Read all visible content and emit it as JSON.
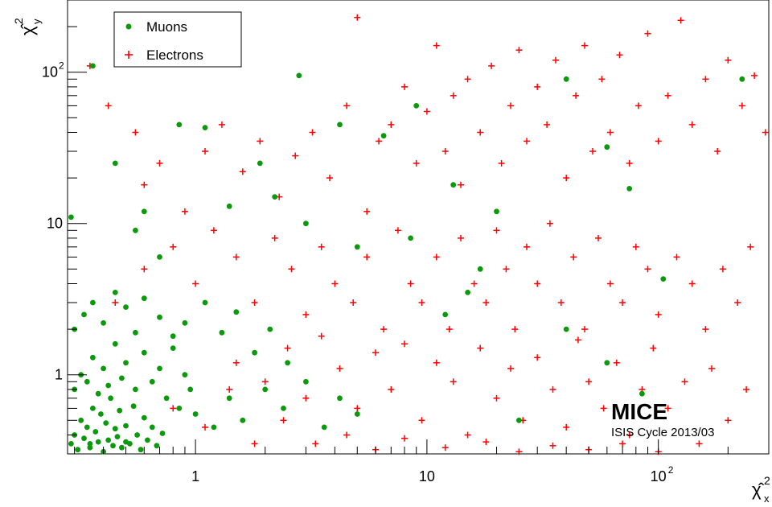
{
  "chart_data": {
    "type": "scatter",
    "xscale": "log",
    "yscale": "log",
    "xlim": [
      0.28,
      300
    ],
    "ylim": [
      0.3,
      300
    ],
    "x_ticks": [
      {
        "value": 1,
        "label": "1"
      },
      {
        "value": 10,
        "label": "10"
      },
      {
        "value": 100,
        "label": "10",
        "sup": "2"
      }
    ],
    "y_ticks": [
      {
        "value": 1,
        "label": "1"
      },
      {
        "value": 10,
        "label": "10"
      },
      {
        "value": 100,
        "label": "10",
        "sup": "2"
      }
    ],
    "xlabel": {
      "text": "χ̂",
      "sup": "2",
      "sub": "x"
    },
    "ylabel": {
      "text": "χ̂",
      "sup": "2",
      "sub": "y"
    },
    "legend": {
      "position": "top-left",
      "entries": [
        "Muons",
        "Electrons"
      ]
    },
    "annotation": {
      "title": "MICE",
      "subtitle": "ISIS Cycle 2013/03"
    },
    "grid": false,
    "colors": {
      "Muons": "#0b9a0b",
      "Electrons": "#ff0000",
      "axis": "#000000"
    },
    "series": [
      {
        "name": "Electrons",
        "marker": "plus",
        "color": "#ff0000",
        "points": [
          [
            0.35,
            110
          ],
          [
            0.42,
            60
          ],
          [
            0.55,
            40
          ],
          [
            0.6,
            18
          ],
          [
            0.7,
            25
          ],
          [
            0.9,
            12
          ],
          [
            1.1,
            30
          ],
          [
            1.3,
            45
          ],
          [
            1.6,
            22
          ],
          [
            1.9,
            35
          ],
          [
            2.3,
            15
          ],
          [
            2.7,
            28
          ],
          [
            3.2,
            40
          ],
          [
            3.8,
            20
          ],
          [
            4.5,
            60
          ],
          [
            5.0,
            230
          ],
          [
            5.5,
            12
          ],
          [
            6.2,
            35
          ],
          [
            7.0,
            45
          ],
          [
            8.0,
            80
          ],
          [
            9.0,
            25
          ],
          [
            10,
            55
          ],
          [
            11,
            150
          ],
          [
            12,
            30
          ],
          [
            13,
            70
          ],
          [
            14,
            18
          ],
          [
            15,
            90
          ],
          [
            17,
            40
          ],
          [
            19,
            110
          ],
          [
            21,
            25
          ],
          [
            23,
            60
          ],
          [
            25,
            140
          ],
          [
            27,
            35
          ],
          [
            30,
            80
          ],
          [
            33,
            45
          ],
          [
            36,
            120
          ],
          [
            40,
            20
          ],
          [
            44,
            70
          ],
          [
            48,
            150
          ],
          [
            52,
            30
          ],
          [
            57,
            90
          ],
          [
            62,
            40
          ],
          [
            68,
            130
          ],
          [
            75,
            25
          ],
          [
            82,
            60
          ],
          [
            90,
            180
          ],
          [
            100,
            35
          ],
          [
            110,
            70
          ],
          [
            125,
            220
          ],
          [
            140,
            45
          ],
          [
            160,
            90
          ],
          [
            180,
            30
          ],
          [
            200,
            120
          ],
          [
            230,
            60
          ],
          [
            260,
            95
          ],
          [
            290,
            40
          ],
          [
            0.45,
            3
          ],
          [
            0.6,
            5
          ],
          [
            0.8,
            7
          ],
          [
            1.0,
            4
          ],
          [
            1.2,
            9
          ],
          [
            1.5,
            6
          ],
          [
            1.8,
            3
          ],
          [
            2.2,
            8
          ],
          [
            2.6,
            5
          ],
          [
            3.0,
            2.5
          ],
          [
            3.5,
            7
          ],
          [
            4.0,
            4
          ],
          [
            4.8,
            3
          ],
          [
            5.5,
            6
          ],
          [
            6.5,
            2
          ],
          [
            7.5,
            9
          ],
          [
            8.5,
            4
          ],
          [
            9.5,
            3
          ],
          [
            11,
            6
          ],
          [
            12.5,
            2
          ],
          [
            14,
            8
          ],
          [
            16,
            4
          ],
          [
            18,
            3
          ],
          [
            20,
            9
          ],
          [
            22,
            5
          ],
          [
            24,
            2
          ],
          [
            27,
            7
          ],
          [
            30,
            4
          ],
          [
            34,
            10
          ],
          [
            38,
            3
          ],
          [
            43,
            6
          ],
          [
            48,
            2
          ],
          [
            55,
            8
          ],
          [
            62,
            4
          ],
          [
            70,
            3
          ],
          [
            80,
            7
          ],
          [
            90,
            5
          ],
          [
            100,
            2.5
          ],
          [
            120,
            6
          ],
          [
            140,
            4
          ],
          [
            160,
            2
          ],
          [
            190,
            5
          ],
          [
            220,
            3
          ],
          [
            250,
            7
          ],
          [
            1.5,
            1.2
          ],
          [
            2.0,
            0.9
          ],
          [
            2.5,
            1.5
          ],
          [
            3.0,
            0.7
          ],
          [
            3.5,
            1.8
          ],
          [
            4.2,
            1.1
          ],
          [
            5.0,
            0.6
          ],
          [
            6.0,
            1.4
          ],
          [
            7.0,
            0.8
          ],
          [
            8.0,
            1.6
          ],
          [
            9.5,
            0.5
          ],
          [
            11,
            1.2
          ],
          [
            13,
            0.9
          ],
          [
            15,
            0.4
          ],
          [
            17,
            1.5
          ],
          [
            20,
            0.7
          ],
          [
            23,
            1.1
          ],
          [
            26,
            0.5
          ],
          [
            30,
            1.3
          ],
          [
            35,
            0.8
          ],
          [
            40,
            0.45
          ],
          [
            45,
            1.7
          ],
          [
            50,
            0.9
          ],
          [
            58,
            0.6
          ],
          [
            66,
            1.2
          ],
          [
            75,
            0.4
          ],
          [
            85,
            0.8
          ],
          [
            95,
            1.5
          ],
          [
            110,
            0.6
          ],
          [
            130,
            0.9
          ],
          [
            150,
            0.35
          ],
          [
            170,
            1.1
          ],
          [
            200,
            0.5
          ],
          [
            240,
            0.8
          ],
          [
            0.8,
            0.6
          ],
          [
            1.1,
            0.45
          ],
          [
            1.4,
            0.8
          ],
          [
            1.8,
            0.35
          ],
          [
            2.4,
            0.5
          ],
          [
            3.3,
            0.35
          ],
          [
            4.5,
            0.4
          ],
          [
            6.0,
            0.32
          ],
          [
            8.0,
            0.38
          ],
          [
            12,
            0.33
          ],
          [
            18,
            0.36
          ],
          [
            25,
            0.31
          ],
          [
            35,
            0.34
          ],
          [
            50,
            0.32
          ],
          [
            70,
            0.35
          ],
          [
            100,
            0.31
          ]
        ]
      },
      {
        "name": "Muons",
        "marker": "circle",
        "color": "#0b9a0b",
        "points": [
          [
            0.29,
            0.35
          ],
          [
            0.3,
            0.4
          ],
          [
            0.31,
            0.32
          ],
          [
            0.32,
            0.5
          ],
          [
            0.33,
            0.38
          ],
          [
            0.34,
            0.45
          ],
          [
            0.35,
            0.33
          ],
          [
            0.36,
            0.6
          ],
          [
            0.37,
            0.42
          ],
          [
            0.38,
            0.36
          ],
          [
            0.39,
            0.55
          ],
          [
            0.4,
            0.31
          ],
          [
            0.41,
            0.48
          ],
          [
            0.42,
            0.37
          ],
          [
            0.43,
            0.7
          ],
          [
            0.44,
            0.34
          ],
          [
            0.45,
            0.44
          ],
          [
            0.46,
            0.39
          ],
          [
            0.47,
            0.58
          ],
          [
            0.48,
            0.33
          ],
          [
            0.5,
            0.46
          ],
          [
            0.52,
            0.35
          ],
          [
            0.54,
            0.62
          ],
          [
            0.56,
            0.4
          ],
          [
            0.58,
            0.32
          ],
          [
            0.6,
            0.52
          ],
          [
            0.62,
            0.37
          ],
          [
            0.65,
            0.45
          ],
          [
            0.68,
            0.34
          ],
          [
            0.72,
            0.41
          ],
          [
            0.3,
            0.8
          ],
          [
            0.32,
            1.0
          ],
          [
            0.34,
            0.9
          ],
          [
            0.36,
            1.3
          ],
          [
            0.38,
            0.75
          ],
          [
            0.4,
            1.1
          ],
          [
            0.42,
            0.85
          ],
          [
            0.45,
            1.6
          ],
          [
            0.48,
            0.95
          ],
          [
            0.5,
            1.2
          ],
          [
            0.55,
            0.8
          ],
          [
            0.6,
            1.4
          ],
          [
            0.65,
            0.9
          ],
          [
            0.7,
            1.1
          ],
          [
            0.75,
            0.7
          ],
          [
            0.8,
            1.5
          ],
          [
            0.85,
            0.6
          ],
          [
            0.9,
            1.0
          ],
          [
            0.95,
            0.8
          ],
          [
            1.0,
            0.55
          ],
          [
            0.3,
            2.0
          ],
          [
            0.33,
            2.5
          ],
          [
            0.36,
            3.0
          ],
          [
            0.4,
            2.2
          ],
          [
            0.45,
            3.5
          ],
          [
            0.5,
            2.8
          ],
          [
            0.55,
            1.9
          ],
          [
            0.6,
            3.2
          ],
          [
            0.7,
            2.4
          ],
          [
            0.8,
            1.8
          ],
          [
            0.29,
            11
          ],
          [
            0.35,
            0.35
          ],
          [
            0.5,
            0.36
          ],
          [
            0.9,
            2.2
          ],
          [
            1.1,
            3.0
          ],
          [
            1.3,
            1.9
          ],
          [
            1.5,
            2.6
          ],
          [
            1.8,
            1.4
          ],
          [
            2.1,
            2.0
          ],
          [
            2.5,
            1.2
          ],
          [
            1.2,
            0.45
          ],
          [
            1.4,
            0.7
          ],
          [
            1.6,
            0.5
          ],
          [
            2.0,
            0.8
          ],
          [
            2.4,
            0.6
          ],
          [
            3.0,
            0.9
          ],
          [
            3.6,
            0.45
          ],
          [
            4.2,
            0.7
          ],
          [
            5.0,
            0.55
          ],
          [
            0.36,
            110
          ],
          [
            0.45,
            25
          ],
          [
            0.55,
            9
          ],
          [
            0.7,
            6
          ],
          [
            1.1,
            43
          ],
          [
            2.8,
            95
          ],
          [
            4.2,
            45
          ],
          [
            6.5,
            38
          ],
          [
            9.0,
            60
          ],
          [
            13,
            18
          ],
          [
            20,
            12
          ],
          [
            15,
            3.5
          ],
          [
            25,
            0.5
          ],
          [
            40,
            2.0
          ],
          [
            60,
            1.2
          ],
          [
            85,
            0.75
          ],
          [
            40,
            90
          ],
          [
            60,
            32
          ],
          [
            75,
            17
          ],
          [
            105,
            4.3
          ],
          [
            230,
            90
          ],
          [
            2.2,
            15
          ],
          [
            3.0,
            10
          ],
          [
            5.0,
            7
          ],
          [
            8.5,
            8
          ],
          [
            12,
            2.5
          ],
          [
            17,
            5
          ],
          [
            0.85,
            45
          ],
          [
            1.4,
            13
          ],
          [
            0.6,
            12
          ],
          [
            1.9,
            25
          ]
        ]
      }
    ]
  }
}
